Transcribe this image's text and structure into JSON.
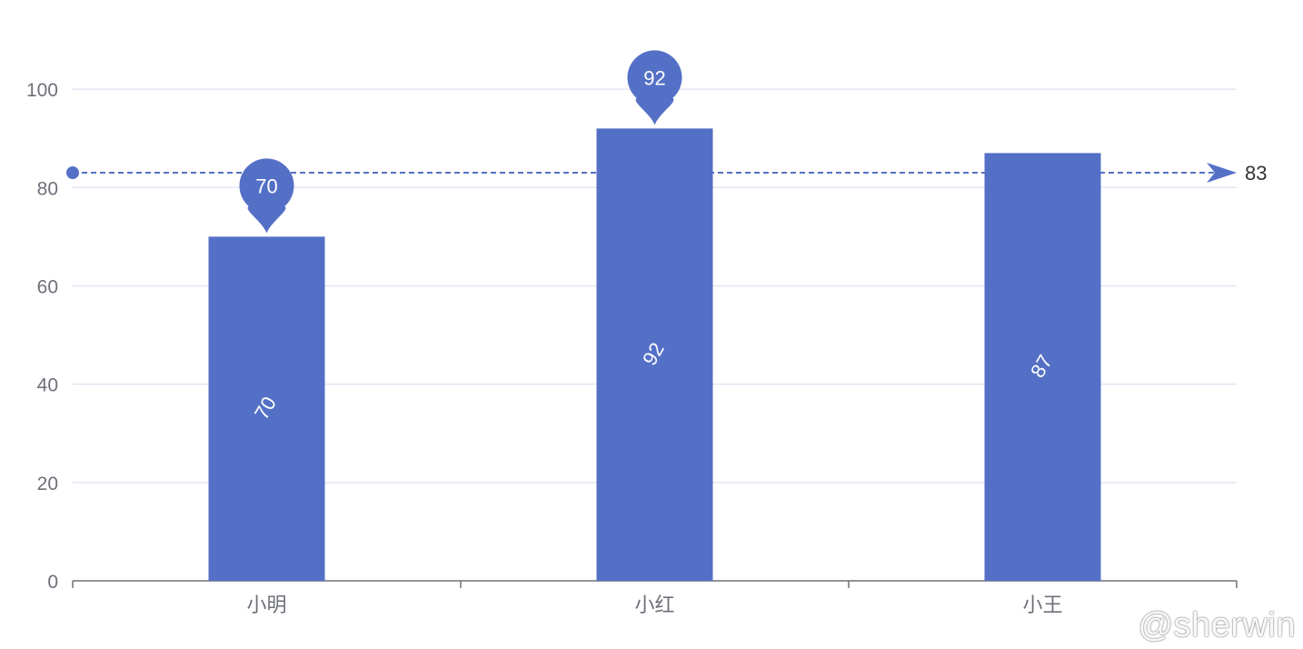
{
  "colors": {
    "bar": "#5470c6",
    "axis": "#6e7079",
    "grid": "#e0e6f1",
    "mark_text": "#ffffff",
    "avg_label": "#333333"
  },
  "watermark": "@sherwin",
  "chart_data": {
    "type": "bar",
    "categories": [
      "小明",
      "小红",
      "小王"
    ],
    "values": [
      70,
      92,
      87
    ],
    "ylim": [
      0,
      100
    ],
    "ymax_axis": 110,
    "yticks": [
      0,
      20,
      40,
      60,
      80,
      100
    ],
    "grid": true,
    "bar_labels": [
      "70",
      "92",
      "87"
    ],
    "mark_points": [
      {
        "category": "小明",
        "value": 70,
        "label": "70"
      },
      {
        "category": "小红",
        "value": 92,
        "label": "92"
      }
    ],
    "mark_line": {
      "type": "average",
      "value": 83,
      "label": "83"
    }
  }
}
